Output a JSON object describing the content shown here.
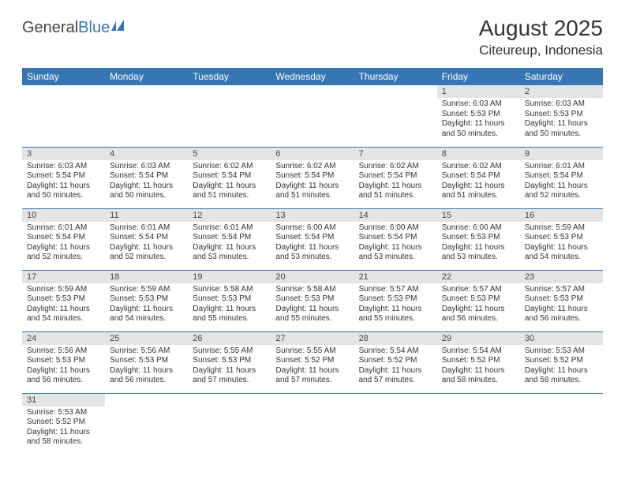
{
  "logo": {
    "part1": "General",
    "part2": "Blue"
  },
  "title": "August 2025",
  "location": "Citeureup, Indonesia",
  "colors": {
    "header_bg": "#3876b3",
    "header_text": "#ffffff",
    "daynum_bg": "#e4e4e4",
    "border": "#3876b3",
    "text": "#333333",
    "logo_accent": "#3876b3"
  },
  "weekdays": [
    "Sunday",
    "Monday",
    "Tuesday",
    "Wednesday",
    "Thursday",
    "Friday",
    "Saturday"
  ],
  "weeks": [
    [
      null,
      null,
      null,
      null,
      null,
      {
        "n": "1",
        "sunrise": "Sunrise: 6:03 AM",
        "sunset": "Sunset: 5:53 PM",
        "daylight": "Daylight: 11 hours and 50 minutes."
      },
      {
        "n": "2",
        "sunrise": "Sunrise: 6:03 AM",
        "sunset": "Sunset: 5:53 PM",
        "daylight": "Daylight: 11 hours and 50 minutes."
      }
    ],
    [
      {
        "n": "3",
        "sunrise": "Sunrise: 6:03 AM",
        "sunset": "Sunset: 5:54 PM",
        "daylight": "Daylight: 11 hours and 50 minutes."
      },
      {
        "n": "4",
        "sunrise": "Sunrise: 6:03 AM",
        "sunset": "Sunset: 5:54 PM",
        "daylight": "Daylight: 11 hours and 50 minutes."
      },
      {
        "n": "5",
        "sunrise": "Sunrise: 6:02 AM",
        "sunset": "Sunset: 5:54 PM",
        "daylight": "Daylight: 11 hours and 51 minutes."
      },
      {
        "n": "6",
        "sunrise": "Sunrise: 6:02 AM",
        "sunset": "Sunset: 5:54 PM",
        "daylight": "Daylight: 11 hours and 51 minutes."
      },
      {
        "n": "7",
        "sunrise": "Sunrise: 6:02 AM",
        "sunset": "Sunset: 5:54 PM",
        "daylight": "Daylight: 11 hours and 51 minutes."
      },
      {
        "n": "8",
        "sunrise": "Sunrise: 6:02 AM",
        "sunset": "Sunset: 5:54 PM",
        "daylight": "Daylight: 11 hours and 51 minutes."
      },
      {
        "n": "9",
        "sunrise": "Sunrise: 6:01 AM",
        "sunset": "Sunset: 5:54 PM",
        "daylight": "Daylight: 11 hours and 52 minutes."
      }
    ],
    [
      {
        "n": "10",
        "sunrise": "Sunrise: 6:01 AM",
        "sunset": "Sunset: 5:54 PM",
        "daylight": "Daylight: 11 hours and 52 minutes."
      },
      {
        "n": "11",
        "sunrise": "Sunrise: 6:01 AM",
        "sunset": "Sunset: 5:54 PM",
        "daylight": "Daylight: 11 hours and 52 minutes."
      },
      {
        "n": "12",
        "sunrise": "Sunrise: 6:01 AM",
        "sunset": "Sunset: 5:54 PM",
        "daylight": "Daylight: 11 hours and 53 minutes."
      },
      {
        "n": "13",
        "sunrise": "Sunrise: 6:00 AM",
        "sunset": "Sunset: 5:54 PM",
        "daylight": "Daylight: 11 hours and 53 minutes."
      },
      {
        "n": "14",
        "sunrise": "Sunrise: 6:00 AM",
        "sunset": "Sunset: 5:54 PM",
        "daylight": "Daylight: 11 hours and 53 minutes."
      },
      {
        "n": "15",
        "sunrise": "Sunrise: 6:00 AM",
        "sunset": "Sunset: 5:53 PM",
        "daylight": "Daylight: 11 hours and 53 minutes."
      },
      {
        "n": "16",
        "sunrise": "Sunrise: 5:59 AM",
        "sunset": "Sunset: 5:53 PM",
        "daylight": "Daylight: 11 hours and 54 minutes."
      }
    ],
    [
      {
        "n": "17",
        "sunrise": "Sunrise: 5:59 AM",
        "sunset": "Sunset: 5:53 PM",
        "daylight": "Daylight: 11 hours and 54 minutes."
      },
      {
        "n": "18",
        "sunrise": "Sunrise: 5:59 AM",
        "sunset": "Sunset: 5:53 PM",
        "daylight": "Daylight: 11 hours and 54 minutes."
      },
      {
        "n": "19",
        "sunrise": "Sunrise: 5:58 AM",
        "sunset": "Sunset: 5:53 PM",
        "daylight": "Daylight: 11 hours and 55 minutes."
      },
      {
        "n": "20",
        "sunrise": "Sunrise: 5:58 AM",
        "sunset": "Sunset: 5:53 PM",
        "daylight": "Daylight: 11 hours and 55 minutes."
      },
      {
        "n": "21",
        "sunrise": "Sunrise: 5:57 AM",
        "sunset": "Sunset: 5:53 PM",
        "daylight": "Daylight: 11 hours and 55 minutes."
      },
      {
        "n": "22",
        "sunrise": "Sunrise: 5:57 AM",
        "sunset": "Sunset: 5:53 PM",
        "daylight": "Daylight: 11 hours and 56 minutes."
      },
      {
        "n": "23",
        "sunrise": "Sunrise: 5:57 AM",
        "sunset": "Sunset: 5:53 PM",
        "daylight": "Daylight: 11 hours and 56 minutes."
      }
    ],
    [
      {
        "n": "24",
        "sunrise": "Sunrise: 5:56 AM",
        "sunset": "Sunset: 5:53 PM",
        "daylight": "Daylight: 11 hours and 56 minutes."
      },
      {
        "n": "25",
        "sunrise": "Sunrise: 5:56 AM",
        "sunset": "Sunset: 5:53 PM",
        "daylight": "Daylight: 11 hours and 56 minutes."
      },
      {
        "n": "26",
        "sunrise": "Sunrise: 5:55 AM",
        "sunset": "Sunset: 5:53 PM",
        "daylight": "Daylight: 11 hours and 57 minutes."
      },
      {
        "n": "27",
        "sunrise": "Sunrise: 5:55 AM",
        "sunset": "Sunset: 5:52 PM",
        "daylight": "Daylight: 11 hours and 57 minutes."
      },
      {
        "n": "28",
        "sunrise": "Sunrise: 5:54 AM",
        "sunset": "Sunset: 5:52 PM",
        "daylight": "Daylight: 11 hours and 57 minutes."
      },
      {
        "n": "29",
        "sunrise": "Sunrise: 5:54 AM",
        "sunset": "Sunset: 5:52 PM",
        "daylight": "Daylight: 11 hours and 58 minutes."
      },
      {
        "n": "30",
        "sunrise": "Sunrise: 5:53 AM",
        "sunset": "Sunset: 5:52 PM",
        "daylight": "Daylight: 11 hours and 58 minutes."
      }
    ],
    [
      {
        "n": "31",
        "sunrise": "Sunrise: 5:53 AM",
        "sunset": "Sunset: 5:52 PM",
        "daylight": "Daylight: 11 hours and 58 minutes."
      },
      null,
      null,
      null,
      null,
      null,
      null
    ]
  ]
}
